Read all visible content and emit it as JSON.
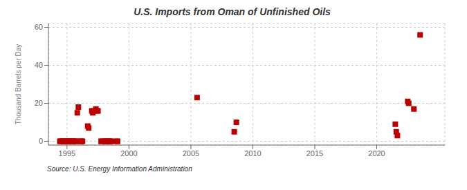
{
  "chart_data": {
    "type": "scatter",
    "title": "U.S. Imports from Oman of Unfinished Oils",
    "ylabel": "Thousand Barrels per Day",
    "annotation": "Source: U.S. Energy Information Administration",
    "xlim": [
      1993.5,
      2025.5
    ],
    "ylim": [
      -2,
      62
    ],
    "xticks": [
      1995,
      2000,
      2005,
      2010,
      2015,
      2020
    ],
    "yticks": [
      0,
      20,
      40,
      60
    ],
    "grid": true,
    "color": "#bb0000",
    "marker": "square",
    "x": [
      1994.42,
      1994.5,
      1994.58,
      1994.67,
      1994.75,
      1994.83,
      1994.92,
      1995.0,
      1995.08,
      1995.17,
      1995.25,
      1995.33,
      1995.42,
      1995.5,
      1995.58,
      1995.67,
      1995.75,
      1995.83,
      1995.92,
      1996.08,
      1996.17,
      1996.25,
      1996.67,
      1996.75,
      1997.0,
      1997.08,
      1997.17,
      1997.33,
      1997.42,
      1997.5,
      1997.75,
      1997.83,
      1998.0,
      1998.08,
      1998.17,
      1998.25,
      1998.33,
      1998.42,
      1998.5,
      1998.58,
      1999.0,
      1999.08,
      2005.5,
      2008.5,
      2008.67,
      2021.5,
      2021.58,
      2021.67,
      2022.5,
      2022.58,
      2023.0,
      2023.5
    ],
    "values": [
      0,
      0,
      0,
      0,
      0,
      0,
      0,
      0,
      0,
      0,
      0,
      0,
      0,
      0,
      0,
      0,
      0,
      15,
      18,
      0,
      0,
      0,
      8,
      7,
      16,
      15,
      16,
      17,
      16,
      16,
      0,
      0,
      0,
      0,
      0,
      0,
      0,
      0,
      0,
      0,
      0,
      0,
      23,
      5,
      10,
      9,
      5,
      3,
      21,
      20,
      17,
      56
    ]
  }
}
